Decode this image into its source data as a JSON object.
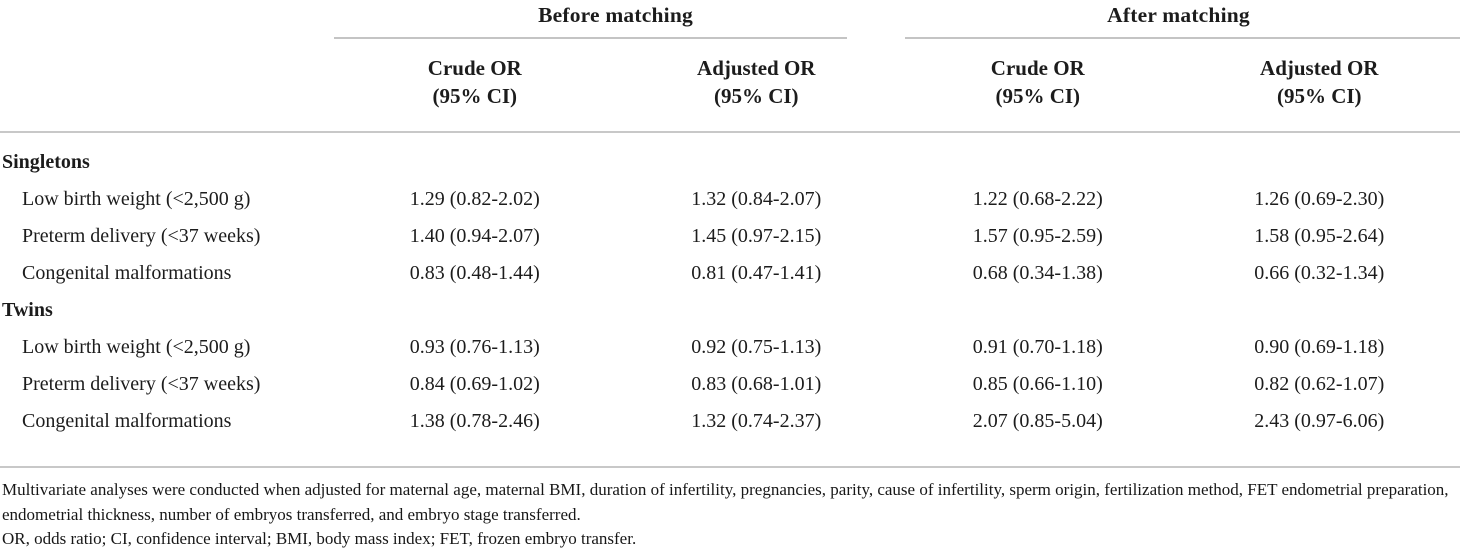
{
  "table": {
    "groups": [
      {
        "label": "Before matching"
      },
      {
        "label": "After matching"
      }
    ],
    "columns": [
      {
        "title": "Crude OR",
        "sub": "(95% CI)"
      },
      {
        "title": "Adjusted OR",
        "sub": "(95% CI)"
      },
      {
        "title": "Crude OR",
        "sub": "(95% CI)"
      },
      {
        "title": "Adjusted OR",
        "sub": "(95% CI)"
      }
    ],
    "sections": [
      {
        "title": "Singletons",
        "rows": [
          {
            "label": "Low birth weight (<2,500 g)",
            "values": [
              "1.29 (0.82-2.02)",
              "1.32 (0.84-2.07)",
              "1.22 (0.68-2.22)",
              "1.26 (0.69-2.30)"
            ]
          },
          {
            "label": "Preterm delivery (<37 weeks)",
            "values": [
              "1.40 (0.94-2.07)",
              "1.45 (0.97-2.15)",
              "1.57 (0.95-2.59)",
              "1.58 (0.95-2.64)"
            ]
          },
          {
            "label": "Congenital malformations",
            "values": [
              "0.83 (0.48-1.44)",
              "0.81 (0.47-1.41)",
              "0.68 (0.34-1.38)",
              "0.66 (0.32-1.34)"
            ]
          }
        ]
      },
      {
        "title": "Twins",
        "rows": [
          {
            "label": "Low birth weight (<2,500 g)",
            "values": [
              "0.93 (0.76-1.13)",
              "0.92 (0.75-1.13)",
              "0.91 (0.70-1.18)",
              "0.90 (0.69-1.18)"
            ]
          },
          {
            "label": "Preterm delivery (<37 weeks)",
            "values": [
              "0.84 (0.69-1.02)",
              "0.83 (0.68-1.01)",
              "0.85 (0.66-1.10)",
              "0.82 (0.62-1.07)"
            ]
          },
          {
            "label": "Congenital malformations",
            "values": [
              "1.38 (0.78-2.46)",
              "1.32 (0.74-2.37)",
              "2.07 (0.85-5.04)",
              "2.43 (0.97-6.06)"
            ]
          }
        ]
      }
    ],
    "footnotes": [
      "Multivariate analyses were conducted when adjusted for maternal age, maternal BMI, duration of infertility, pregnancies, parity, cause of infertility, sperm origin, fertilization method, FET endometrial preparation, endometrial thickness, number of embryos transferred, and embryo stage transferred.",
      "OR, odds ratio; CI, confidence interval; BMI, body mass index; FET, frozen embryo transfer."
    ],
    "colors": {
      "rule": "#c8c8c8",
      "text": "#1c1c1c"
    }
  }
}
